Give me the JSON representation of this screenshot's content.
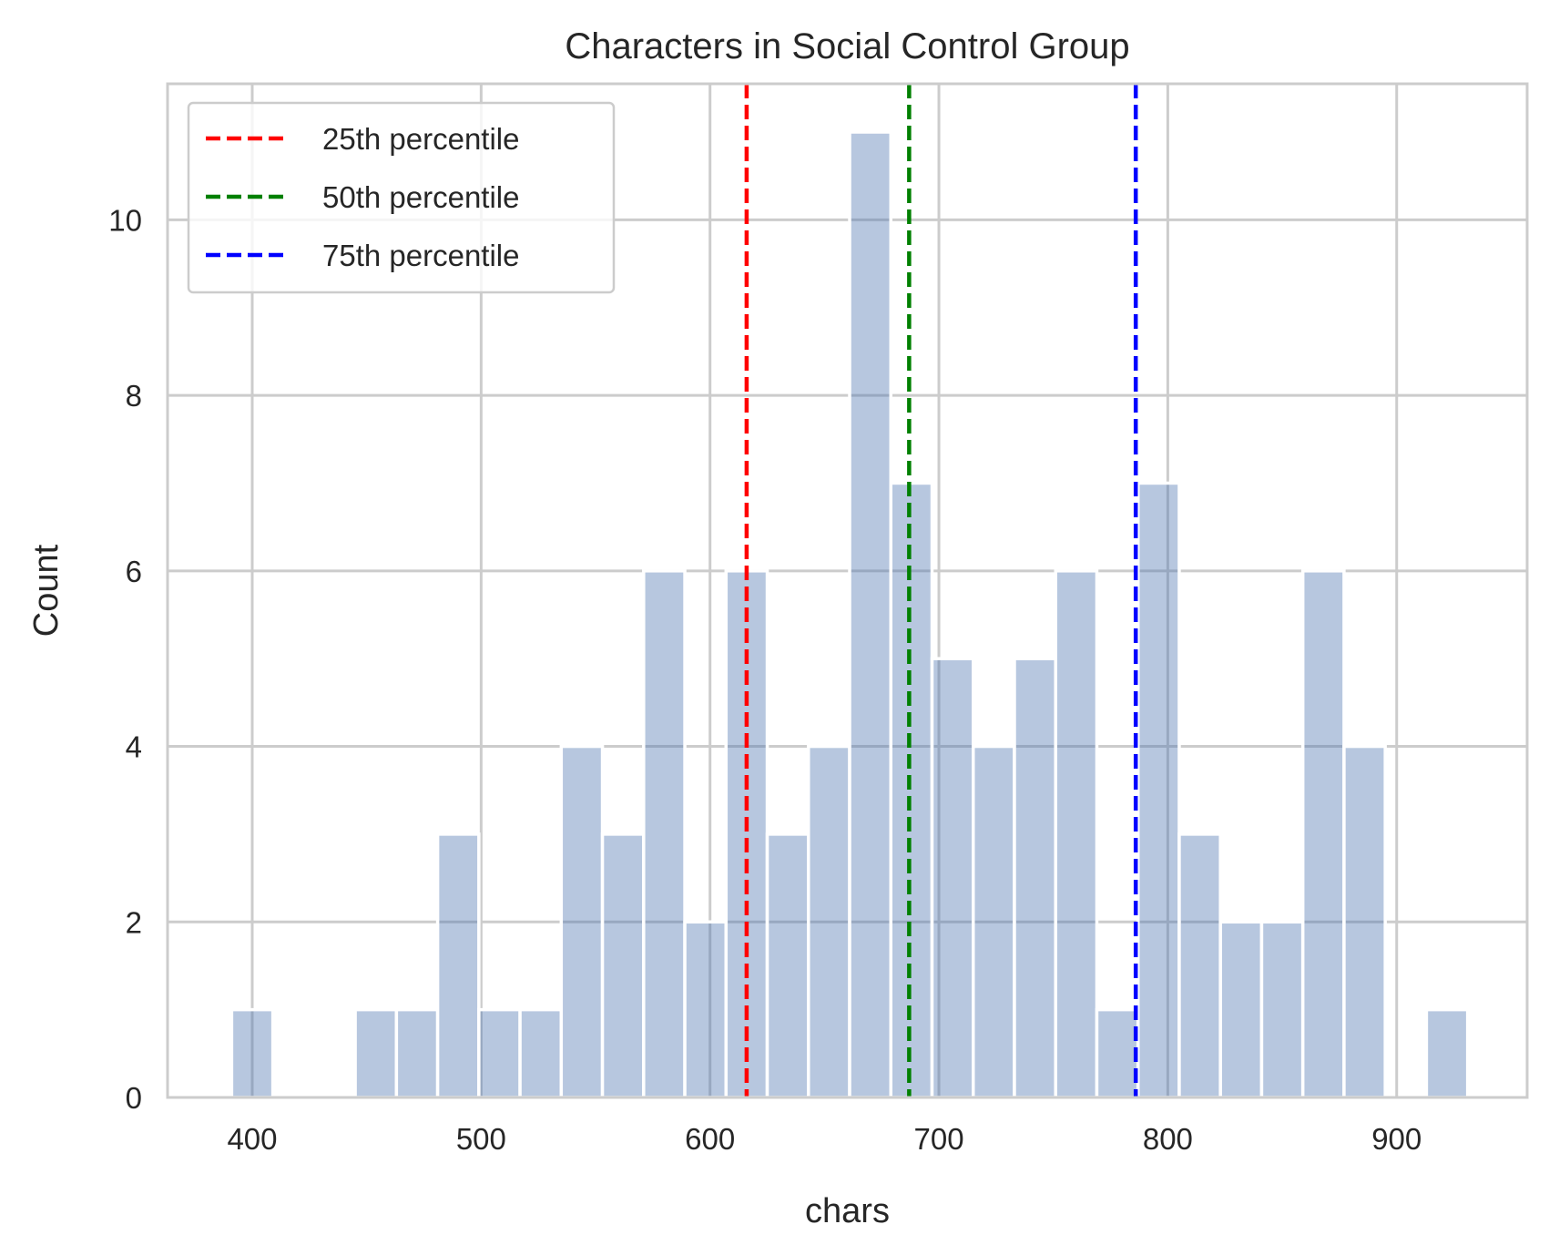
{
  "chart_data": {
    "type": "bar",
    "title": "Characters in Social Control Group",
    "xlabel": "chars",
    "ylabel": "Count",
    "xlim": [
      363,
      957
    ],
    "ylim": [
      0,
      11.55
    ],
    "xticks": [
      400,
      500,
      600,
      700,
      800,
      900
    ],
    "yticks": [
      0,
      2,
      4,
      6,
      8,
      10
    ],
    "xtick_labels": [
      "400",
      "500",
      "600",
      "700",
      "800",
      "900"
    ],
    "ytick_labels": [
      "0",
      "2",
      "4",
      "6",
      "8",
      "10"
    ],
    "grid": true,
    "bin_edges": [
      391,
      409,
      427,
      445,
      463,
      481,
      499,
      517,
      535,
      553,
      571,
      589,
      607,
      625,
      643,
      661,
      679,
      697,
      715,
      733,
      751,
      769,
      787,
      805,
      823,
      841,
      859,
      877,
      895,
      913,
      931
    ],
    "counts": [
      1,
      0,
      0,
      1,
      1,
      3,
      1,
      1,
      4,
      3,
      6,
      2,
      6,
      3,
      4,
      11,
      7,
      5,
      4,
      5,
      6,
      1,
      7,
      3,
      2,
      2,
      6,
      4,
      0,
      1
    ],
    "bar_color": "#b5c6df",
    "legend_position": "upper left",
    "reference_lines": [
      {
        "name": "25th percentile",
        "x": 616,
        "color": "#ff0000"
      },
      {
        "name": "50th percentile",
        "x": 687,
        "color": "#008000"
      },
      {
        "name": "75th percentile",
        "x": 786,
        "color": "#0000ff"
      }
    ]
  }
}
